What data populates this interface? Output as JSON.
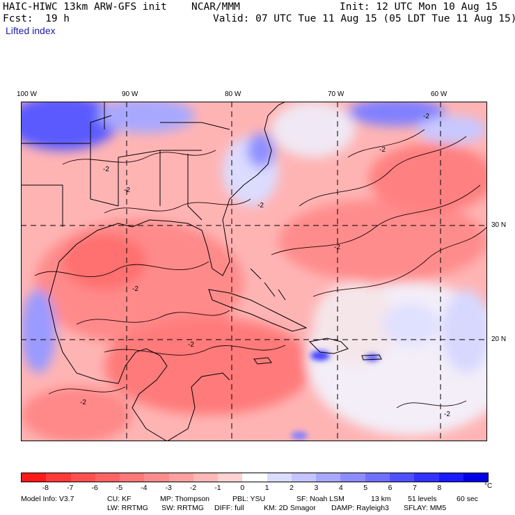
{
  "header": {
    "model": "HAIC-HIWC 13km ARW-GFS init",
    "org": "NCAR/MMM",
    "init": "Init: 12 UTC Mon 10 Aug 15",
    "fcst": "Fcst:  19 h",
    "valid": "Valid: 07 UTC Tue 11 Aug 15 (05 LDT Tue 11 Aug 15)",
    "field": "Lifted index"
  },
  "map": {
    "lon_labels": [
      "100 W",
      "90 W",
      "80 W",
      "70 W",
      "60 W"
    ],
    "lat_labels": [
      "30 N",
      "20 N"
    ],
    "contour_labels": [
      "-2",
      "-2",
      "-2",
      "-2",
      "-2",
      "-2",
      "-2",
      "-2",
      "-2",
      "-2"
    ]
  },
  "colorbar": {
    "ticks": [
      "-8",
      "-7",
      "-6",
      "-5",
      "-4",
      "-3",
      "-2",
      "-1",
      "0",
      "1",
      "2",
      "3",
      "4",
      "5",
      "6",
      "7",
      "8"
    ],
    "unit": "°C",
    "colors": [
      "#ff1a1a",
      "#ff3a3a",
      "#ff5050",
      "#ff6464",
      "#ff7878",
      "#ff8c8c",
      "#ffa0a0",
      "#ffb8b8",
      "#ffd2d2",
      "#ffffff",
      "#dcdcff",
      "#c4c4ff",
      "#a8a8ff",
      "#8c8cff",
      "#7070ff",
      "#5050ff",
      "#3232ff",
      "#1a1aff",
      "#0000e6"
    ]
  },
  "footer": {
    "line1": {
      "model_info": "Model Info: V3.7",
      "cu": "CU: KF",
      "mp": "MP: Thompson",
      "pbl": "PBL: YSU",
      "sf": "SF: Noah LSM",
      "res": "13 km",
      "levels": "51 levels",
      "dt": "60 sec"
    },
    "line2": {
      "lw": "LW: RRTMG",
      "sw": "SW: RRTMG",
      "diff": "DIFF: full",
      "km": "KM: 2D Smagor",
      "damp": "DAMP: Rayleigh3",
      "sflay": "SFLAY: MM5"
    }
  }
}
